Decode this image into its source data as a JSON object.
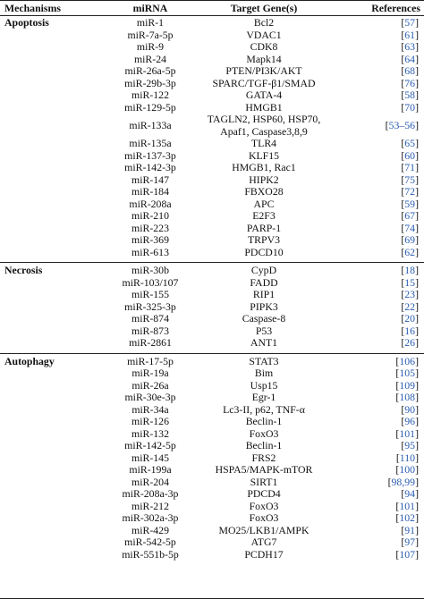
{
  "headers": {
    "mechanisms": "Mechanisms",
    "mirna": "miRNA",
    "target": "Target Gene(s)",
    "references": "References"
  },
  "sections": [
    {
      "mechanism": "Apoptosis",
      "rows": [
        {
          "mirna": "miR-1",
          "target": "Bcl2",
          "ref": "57"
        },
        {
          "mirna": "miR-7a-5p",
          "target": "VDAC1",
          "ref": "61"
        },
        {
          "mirna": "miR-9",
          "target": "CDK8",
          "ref": "63"
        },
        {
          "mirna": "miR-24",
          "target": "Mapk14",
          "ref": "64"
        },
        {
          "mirna": "miR-26a-5p",
          "target": "PTEN/PI3K/AKT",
          "ref": "68"
        },
        {
          "mirna": "miR-29b-3p",
          "target": "SPARC/TGF-β1/SMAD",
          "ref": "76"
        },
        {
          "mirna": "miR-122",
          "target": "GATA-4",
          "ref": "58"
        },
        {
          "mirna": "miR-129-5p",
          "target": "HMGB1",
          "ref": "70"
        },
        {
          "mirna": "miR-133a",
          "target": "TAGLN2, HSP60, HSP70, Apaf1, Caspase3,8,9",
          "ref": "53–56"
        },
        {
          "mirna": "miR-135a",
          "target": "TLR4",
          "ref": "65"
        },
        {
          "mirna": "miR-137-3p",
          "target": "KLF15",
          "ref": "60"
        },
        {
          "mirna": "miR-142-3p",
          "target": "HMGB1, Rac1",
          "ref": "71"
        },
        {
          "mirna": "miR-147",
          "target": "HIPK2",
          "ref": "75"
        },
        {
          "mirna": "miR-184",
          "target": "FBXO28",
          "ref": "72"
        },
        {
          "mirna": "miR-208a",
          "target": "APC",
          "ref": "59"
        },
        {
          "mirna": "miR-210",
          "target": "E2F3",
          "ref": "67"
        },
        {
          "mirna": "miR-223",
          "target": "PARP-1",
          "ref": "74"
        },
        {
          "mirna": "miR-369",
          "target": "TRPV3",
          "ref": "69"
        },
        {
          "mirna": "miR-613",
          "target": "PDCD10",
          "ref": "62"
        }
      ]
    },
    {
      "mechanism": "Necrosis",
      "rows": [
        {
          "mirna": "miR-30b",
          "target": "CypD",
          "ref": "18"
        },
        {
          "mirna": "miR-103/107",
          "target": "FADD",
          "ref": "15"
        },
        {
          "mirna": "miR-155",
          "target": "RIP1",
          "ref": "23"
        },
        {
          "mirna": "miR-325-3p",
          "target": "PIPK3",
          "ref": "22"
        },
        {
          "mirna": "miR-874",
          "target": "Caspase-8",
          "ref": "20"
        },
        {
          "mirna": "miR-873",
          "target": "P53",
          "ref": "16"
        },
        {
          "mirna": "miR-2861",
          "target": "ANT1",
          "ref": "26"
        }
      ]
    },
    {
      "mechanism": "Autophagy",
      "rows": [
        {
          "mirna": "miR-17-5p",
          "target": "STAT3",
          "ref": "106"
        },
        {
          "mirna": "miR-19a",
          "target": "Bim",
          "ref": "105"
        },
        {
          "mirna": "miR-26a",
          "target": "Usp15",
          "ref": "109"
        },
        {
          "mirna": "miR-30e-3p",
          "target": "Egr-1",
          "ref": "108"
        },
        {
          "mirna": "miR-34a",
          "target": "Lc3-II, p62, TNF-α",
          "ref": "90"
        },
        {
          "mirna": "miR-126",
          "target": "Beclin-1",
          "ref": "96"
        },
        {
          "mirna": "miR-132",
          "target": "FoxO3",
          "ref": "101"
        },
        {
          "mirna": "miR-142-5p",
          "target": "Beclin-1",
          "ref": "95"
        },
        {
          "mirna": "miR-145",
          "target": "FRS2",
          "ref": "110"
        },
        {
          "mirna": "miR-199a",
          "target": "HSPA5/MAPK-mTOR",
          "ref": "100"
        },
        {
          "mirna": "miR-204",
          "target": "SIRT1",
          "ref": "98,99"
        },
        {
          "mirna": "miR-208a-3p",
          "target": "PDCD4",
          "ref": "94"
        },
        {
          "mirna": "miR-212",
          "target": "FoxO3",
          "ref": "101"
        },
        {
          "mirna": "miR-302a-3p",
          "target": "FoxO3",
          "ref": "102"
        },
        {
          "mirna": "miR-429",
          "target": "MO25/LKB1/AMPK",
          "ref": "91"
        },
        {
          "mirna": "miR-542-5p",
          "target": "ATG7",
          "ref": "97"
        },
        {
          "mirna": "miR-551b-5p",
          "target": "PCDH17",
          "ref": "107"
        }
      ]
    }
  ]
}
